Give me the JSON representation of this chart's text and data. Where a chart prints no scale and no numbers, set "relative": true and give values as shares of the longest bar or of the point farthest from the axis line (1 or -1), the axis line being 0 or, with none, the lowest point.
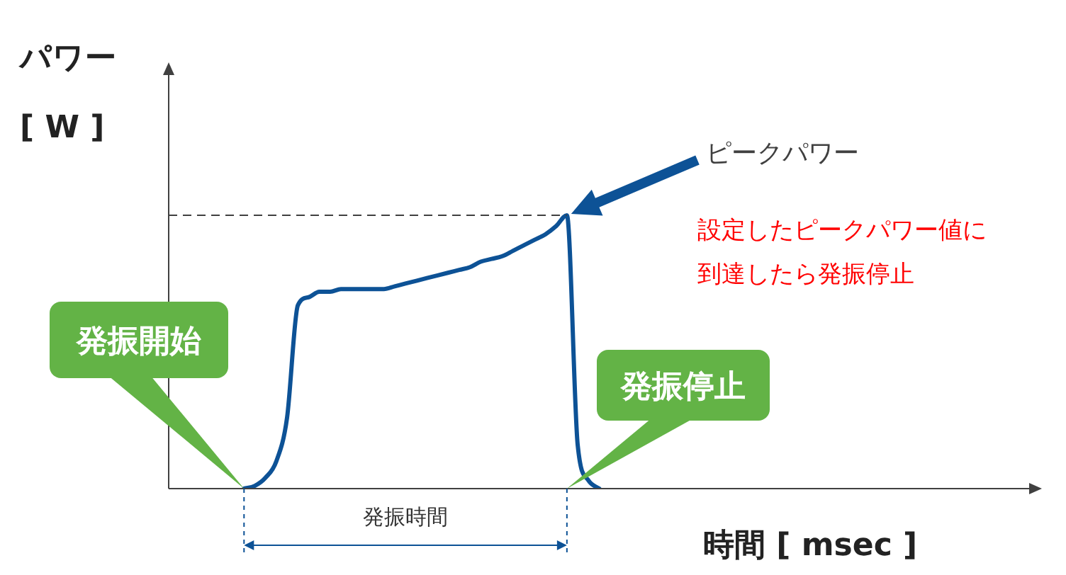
{
  "chart_data": {
    "type": "line",
    "relative": true,
    "xlabel": "時間 [ msec ]",
    "ylabel": "パワー\n[ W ]",
    "categories": [
      null,
      null,
      null,
      null,
      null,
      null,
      null,
      null,
      null,
      null,
      null,
      null,
      null,
      null,
      null,
      null,
      null,
      null,
      null,
      null,
      null,
      null,
      null,
      null,
      null,
      null,
      null,
      null,
      null,
      null,
      null,
      null,
      null,
      null,
      null,
      null,
      null,
      null,
      null,
      null,
      null,
      null,
      null,
      null,
      null,
      null,
      null,
      null,
      null,
      null,
      null,
      null,
      null,
      null,
      null,
      null,
      null,
      null,
      null,
      null,
      null,
      null,
      null,
      null,
      null,
      null,
      null,
      null,
      null,
      null,
      null,
      null,
      null,
      null,
      null,
      null,
      null,
      null,
      null,
      null,
      null,
      null
    ],
    "series": [
      {
        "color": "#0d5296",
        "values": [
          null,
          null,
          null,
          null,
          null,
          null,
          null,
          0,
          0.01,
          0.04,
          0.1,
          0.26,
          0.67,
          0.7,
          0.72,
          0.72,
          0.73,
          0.73,
          0.73,
          0.73,
          0.73,
          0.74,
          0.75,
          0.76,
          0.77,
          0.78,
          0.79,
          0.8,
          0.81,
          0.83,
          0.84,
          0.85,
          0.87,
          0.89,
          0.91,
          0.93,
          0.96,
          1,
          0.16,
          0.03,
          0,
          null,
          null,
          null,
          null,
          null,
          null,
          null,
          null,
          null,
          null,
          null,
          null,
          null,
          null,
          null,
          null,
          null,
          null,
          null,
          null,
          null,
          null,
          null,
          null,
          null,
          null,
          null,
          null,
          null,
          null,
          null,
          null,
          null,
          null,
          null,
          null,
          null,
          null,
          null,
          null,
          null
        ]
      }
    ],
    "ref_lines": [
      {
        "axis": "y",
        "value": 1,
        "line_style": "dashed",
        "color": "#404040"
      }
    ],
    "marker": "none",
    "line_style": "solid",
    "legend": false,
    "annotations": [
      "ピークパワー",
      "設定したピークパワー値に到達したら発振停止",
      "発振開始",
      "発振停止",
      "発振時間"
    ]
  }
}
